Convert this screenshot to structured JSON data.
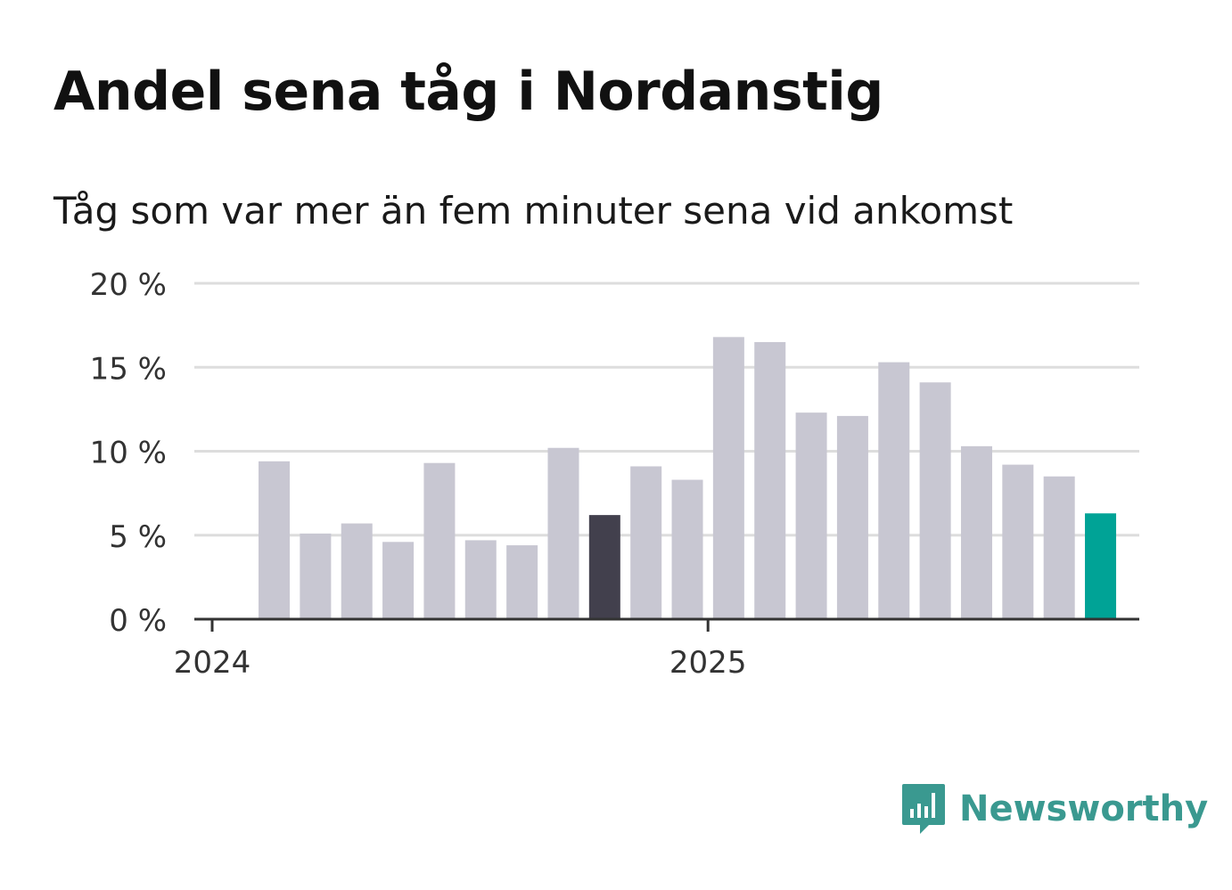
{
  "title": "Andel sena tåg i Nordanstig",
  "subtitle": "Tåg som var mer än fem minuter sena vid ankomst",
  "brand": {
    "name": "Newsworthy",
    "color": "#3a9990"
  },
  "colors": {
    "bar": "#c8c7d2",
    "highlight_previous": "#42404d",
    "highlight_latest": "#00a396",
    "gridline": "#dddddd",
    "axis": "#333333"
  },
  "chart_data": {
    "type": "bar",
    "title": "Andel sena tåg i Nordanstig",
    "subtitle": "Tåg som var mer än fem minuter sena vid ankomst",
    "xlabel": "",
    "ylabel": "",
    "ylim": [
      0,
      20
    ],
    "y_ticks": [
      0,
      5,
      10,
      15,
      20
    ],
    "y_tick_labels": [
      "0 %",
      "5 %",
      "10 %",
      "15 %",
      "20 %"
    ],
    "x_tick_labels": [
      "2024",
      "2025"
    ],
    "categories": [
      "2024-01",
      "2024-02",
      "2024-03",
      "2024-04",
      "2024-05",
      "2024-06",
      "2024-07",
      "2024-08",
      "2024-09",
      "2024-10",
      "2024-11",
      "2024-12",
      "2025-01",
      "2025-02",
      "2025-03",
      "2025-04",
      "2025-05",
      "2025-06",
      "2025-07",
      "2025-08",
      "2025-09",
      "2025-10",
      "2025-11",
      "2025-12"
    ],
    "values": [
      null,
      9.4,
      5.1,
      5.7,
      4.6,
      9.3,
      4.7,
      4.4,
      10.2,
      6.2,
      9.1,
      8.3,
      16.8,
      16.5,
      12.3,
      12.1,
      15.3,
      14.1,
      10.3,
      9.2,
      8.5,
      6.3,
      null,
      null
    ],
    "highlight": {
      "previous_year_same_month": 9,
      "latest": 21
    },
    "grid": true,
    "legend": "none"
  }
}
